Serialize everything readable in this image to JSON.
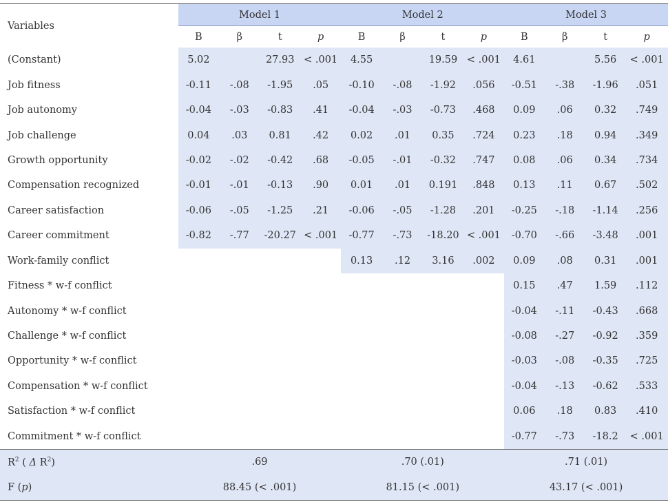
{
  "header": {
    "variables_label": "Variables",
    "models": [
      "Model 1",
      "Model 2",
      "Model 3"
    ],
    "subcols": [
      "B",
      "β",
      "t",
      "p"
    ]
  },
  "rows": [
    {
      "label": "(Constant)",
      "m1": [
        "5.02",
        "",
        "27.93",
        "< .001"
      ],
      "m2": [
        "4.55",
        "",
        "19.59",
        "< .001"
      ],
      "m3": [
        "4.61",
        "",
        "5.56",
        "< .001"
      ]
    },
    {
      "label": "Job fitness",
      "m1": [
        "-0.11",
        "-.08",
        "-1.95",
        ".05"
      ],
      "m2": [
        "-0.10",
        "-.08",
        "-1.92",
        ".056"
      ],
      "m3": [
        "-0.51",
        "-.38",
        "-1.96",
        ".051"
      ]
    },
    {
      "label": "Job autonomy",
      "m1": [
        "-0.04",
        "-.03",
        "-0.83",
        ".41"
      ],
      "m2": [
        "-0.04",
        "-.03",
        "-0.73",
        ".468"
      ],
      "m3": [
        "0.09",
        ".06",
        "0.32",
        ".749"
      ]
    },
    {
      "label": "Job challenge",
      "m1": [
        "0.04",
        ".03",
        "0.81",
        ".42"
      ],
      "m2": [
        "0.02",
        ".01",
        "0.35",
        ".724"
      ],
      "m3": [
        "0.23",
        ".18",
        "0.94",
        ".349"
      ]
    },
    {
      "label": "Growth opportunity",
      "m1": [
        "-0.02",
        "-.02",
        "-0.42",
        ".68"
      ],
      "m2": [
        "-0.05",
        "-.01",
        "-0.32",
        ".747"
      ],
      "m3": [
        "0.08",
        ".06",
        "0.34",
        ".734"
      ]
    },
    {
      "label": "Compensation recognized",
      "m1": [
        "-0.01",
        "-.01",
        "-0.13",
        ".90"
      ],
      "m2": [
        "0.01",
        ".01",
        "0.191",
        ".848"
      ],
      "m3": [
        "0.13",
        ".11",
        "0.67",
        ".502"
      ]
    },
    {
      "label": "Career satisfaction",
      "m1": [
        "-0.06",
        "-.05",
        "-1.25",
        ".21"
      ],
      "m2": [
        "-0.06",
        "-.05",
        "-1.28",
        ".201"
      ],
      "m3": [
        "-0.25",
        "-.18",
        "-1.14",
        ".256"
      ]
    },
    {
      "label": "Career commitment",
      "m1": [
        "-0.82",
        "-.77",
        "-20.27",
        "< .001"
      ],
      "m2": [
        "-0.77",
        "-.73",
        "-18.20",
        "< .001"
      ],
      "m3": [
        "-0.70",
        "-.66",
        "-3.48",
        ".001"
      ]
    },
    {
      "label": "Work-family conflict",
      "m1": [
        "",
        "",
        "",
        ""
      ],
      "m2": [
        "0.13",
        ".12",
        "3.16",
        ".002"
      ],
      "m3": [
        "0.09",
        ".08",
        "0.31",
        ".001"
      ]
    },
    {
      "label": "Fitness * w-f conflict",
      "m1": [
        "",
        "",
        "",
        ""
      ],
      "m2": [
        "",
        "",
        "",
        ""
      ],
      "m3": [
        "0.15",
        ".47",
        "1.59",
        ".112"
      ]
    },
    {
      "label": "Autonomy * w-f conflict",
      "m1": [
        "",
        "",
        "",
        ""
      ],
      "m2": [
        "",
        "",
        "",
        ""
      ],
      "m3": [
        "-0.04",
        "-.11",
        "-0.43",
        ".668"
      ]
    },
    {
      "label": "Challenge * w-f conflict",
      "m1": [
        "",
        "",
        "",
        ""
      ],
      "m2": [
        "",
        "",
        "",
        ""
      ],
      "m3": [
        "-0.08",
        "-.27",
        "-0.92",
        ".359"
      ]
    },
    {
      "label": "Opportunity * w-f conflict",
      "m1": [
        "",
        "",
        "",
        ""
      ],
      "m2": [
        "",
        "",
        "",
        ""
      ],
      "m3": [
        "-0.03",
        "-.08",
        "-0.35",
        ".725"
      ]
    },
    {
      "label": "Compensation * w-f conflict",
      "m1": [
        "",
        "",
        "",
        ""
      ],
      "m2": [
        "",
        "",
        "",
        ""
      ],
      "m3": [
        "-0.04",
        "-.13",
        "-0.62",
        ".533"
      ]
    },
    {
      "label": "Satisfaction * w-f conflict",
      "m1": [
        "",
        "",
        "",
        ""
      ],
      "m2": [
        "",
        "",
        "",
        ""
      ],
      "m3": [
        "0.06",
        ".18",
        "0.83",
        ".410"
      ]
    },
    {
      "label": "Commitment * w-f conflict",
      "m1": [
        "",
        "",
        "",
        ""
      ],
      "m2": [
        "",
        "",
        "",
        ""
      ],
      "m3": [
        "-0.77",
        "-.73",
        "-18.2",
        "< .001"
      ]
    }
  ],
  "footer": {
    "r2_label": "R",
    "r2_sup": "2",
    "delta_label": "Δ",
    "r2_values": [
      ".69",
      ".70 (.01)",
      ".71 (.01)"
    ],
    "f_label": "F",
    "f_p": "p",
    "f_values": [
      "88.45 (< .001)",
      "81.15 (< .001)",
      "43.17 (< .001)"
    ]
  },
  "colors": {
    "header_fill": "#c8d5f3",
    "highlight_fill": "#dfe7f6",
    "text": "#333333"
  }
}
